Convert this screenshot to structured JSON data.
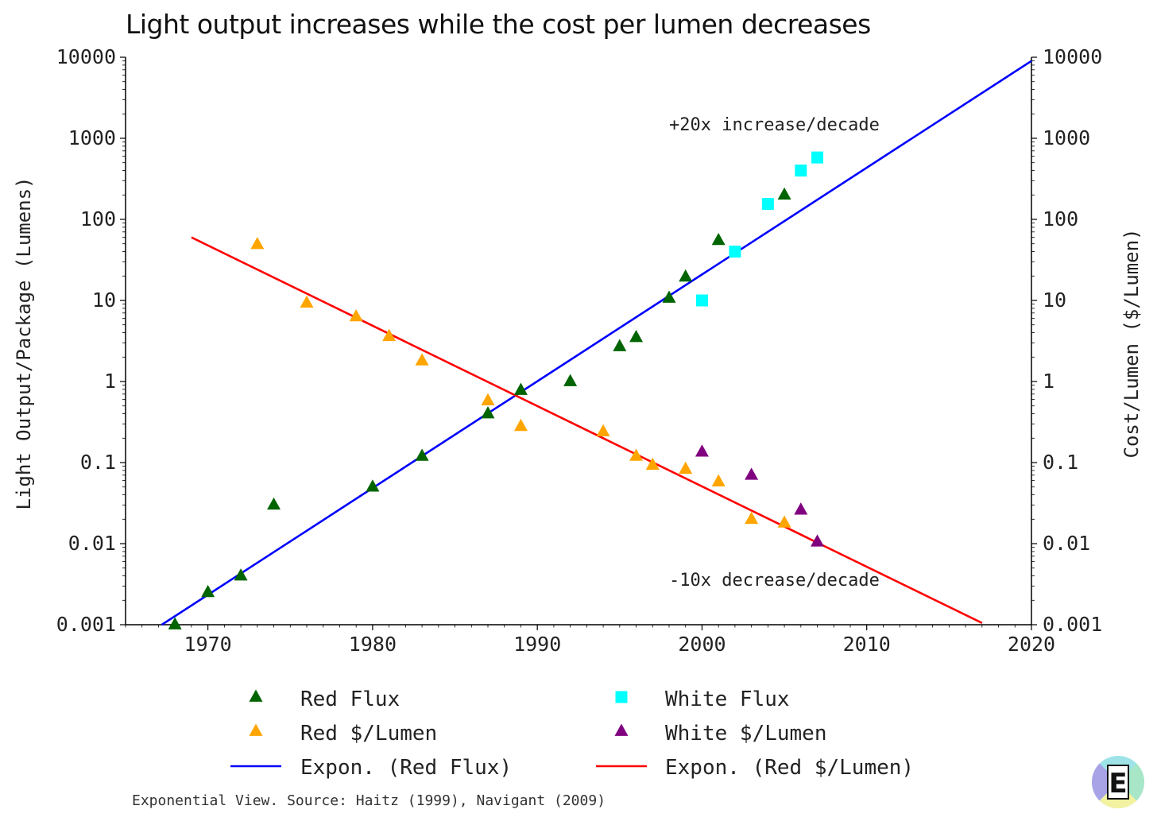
{
  "title": "Light output increases while the cost per lumen decreases",
  "source": "Exponential View. Source: Haitz (1999), Navigant (2009)",
  "annotations": {
    "increase": "+20x increase/decade",
    "decrease": "-10x decrease/decade"
  },
  "chart_data": {
    "type": "scatter",
    "title": "Light output increases while the cost per lumen decreases",
    "xlabel": "",
    "ylabel_left": "Light Output/Package (Lumens)",
    "ylabel_right": "Cost/Lumen ($/Lumen)",
    "xlim": [
      1965,
      2020
    ],
    "ylim": [
      0.001,
      10000
    ],
    "yscale": "log",
    "x_ticks": [
      1970,
      1980,
      1990,
      2000,
      2010,
      2020
    ],
    "y_ticks": [
      {
        "value": 0.001,
        "label": "0.001"
      },
      {
        "value": 0.01,
        "label": "0.01"
      },
      {
        "value": 0.1,
        "label": "0.1"
      },
      {
        "value": 1,
        "label": "1"
      },
      {
        "value": 10,
        "label": "10"
      },
      {
        "value": 100,
        "label": "100"
      },
      {
        "value": 1000,
        "label": "1000"
      },
      {
        "value": 10000,
        "label": "10000"
      }
    ],
    "grid": false,
    "legend_position": "bottom",
    "series": [
      {
        "name": "Red Flux",
        "marker": "triangle",
        "color": "#006400",
        "points": [
          {
            "x": 1968,
            "y": 0.001
          },
          {
            "x": 1970,
            "y": 0.0025
          },
          {
            "x": 1972,
            "y": 0.004
          },
          {
            "x": 1974,
            "y": 0.03
          },
          {
            "x": 1980,
            "y": 0.05
          },
          {
            "x": 1983,
            "y": 0.12
          },
          {
            "x": 1987,
            "y": 0.4
          },
          {
            "x": 1989,
            "y": 0.78
          },
          {
            "x": 1992,
            "y": 1.0
          },
          {
            "x": 1995,
            "y": 2.7
          },
          {
            "x": 1996,
            "y": 3.5
          },
          {
            "x": 1998,
            "y": 10.7
          },
          {
            "x": 1999,
            "y": 19.5
          },
          {
            "x": 2001,
            "y": 55
          },
          {
            "x": 2005,
            "y": 200
          }
        ]
      },
      {
        "name": "Red $/Lumen",
        "marker": "triangle",
        "color": "#FFA500",
        "points": [
          {
            "x": 1973,
            "y": 49
          },
          {
            "x": 1976,
            "y": 9.3
          },
          {
            "x": 1979,
            "y": 6.3
          },
          {
            "x": 1981,
            "y": 3.6
          },
          {
            "x": 1983,
            "y": 1.8
          },
          {
            "x": 1987,
            "y": 0.58
          },
          {
            "x": 1989,
            "y": 0.28
          },
          {
            "x": 1994,
            "y": 0.24
          },
          {
            "x": 1996,
            "y": 0.12
          },
          {
            "x": 1997,
            "y": 0.093
          },
          {
            "x": 1999,
            "y": 0.083
          },
          {
            "x": 2001,
            "y": 0.058
          },
          {
            "x": 2003,
            "y": 0.02
          },
          {
            "x": 2005,
            "y": 0.018
          }
        ]
      },
      {
        "name": "White Flux",
        "marker": "square",
        "color": "#00FFFF",
        "points": [
          {
            "x": 2000,
            "y": 10
          },
          {
            "x": 2002,
            "y": 40
          },
          {
            "x": 2004,
            "y": 155
          },
          {
            "x": 2006,
            "y": 400
          },
          {
            "x": 2007,
            "y": 580
          }
        ]
      },
      {
        "name": "White $/Lumen",
        "marker": "triangle",
        "color": "#800080",
        "points": [
          {
            "x": 2000,
            "y": 0.135
          },
          {
            "x": 2003,
            "y": 0.07
          },
          {
            "x": 2006,
            "y": 0.026
          },
          {
            "x": 2007,
            "y": 0.0105
          }
        ]
      }
    ],
    "trendlines": [
      {
        "name": "Expon. (Red Flux)",
        "color": "#0000FF",
        "x": [
          1967.2,
          2020
        ],
        "y": [
          0.001,
          9000
        ]
      },
      {
        "name": "Expon. (Red $/Lumen)",
        "color": "#FF0000",
        "x": [
          1969,
          2017
        ],
        "y": [
          60,
          0.00105
        ]
      }
    ]
  },
  "legend": [
    {
      "label": "Red Flux",
      "type": "triangle",
      "color": "#006400"
    },
    {
      "label": "White Flux",
      "type": "square",
      "color": "#00FFFF"
    },
    {
      "label": "Red $/Lumen",
      "type": "triangle",
      "color": "#FFA500"
    },
    {
      "label": "White $/Lumen",
      "type": "triangle",
      "color": "#800080"
    },
    {
      "label": "Expon. (Red Flux)",
      "type": "line",
      "color": "#0000FF"
    },
    {
      "label": "Expon. (Red $/Lumen)",
      "type": "line",
      "color": "#FF0000"
    }
  ],
  "logo": {
    "letter": "E",
    "colors": [
      "#A8A2E6",
      "#A8E6C8",
      "#F2F2A0",
      "#9EE3E8"
    ]
  }
}
